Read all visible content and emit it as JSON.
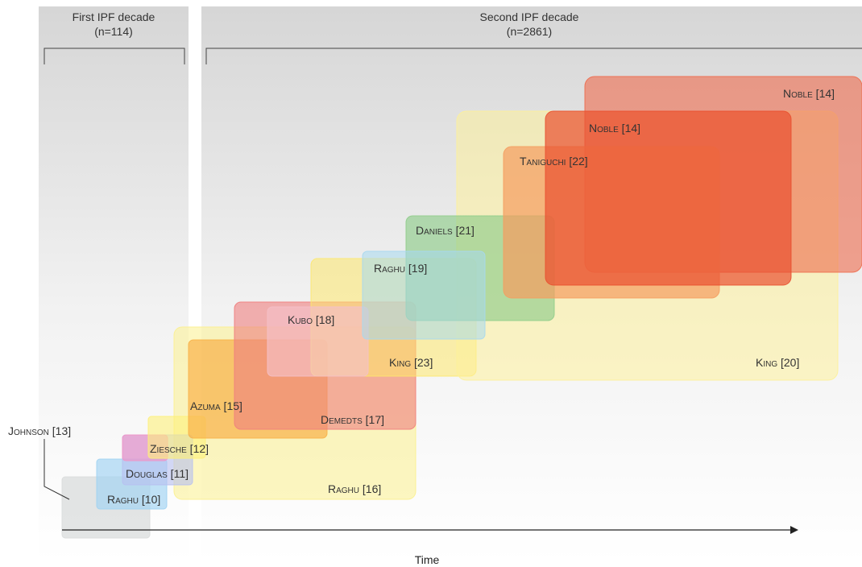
{
  "decades": [
    {
      "line1": "First IPF decade",
      "line2": "(n=114)"
    },
    {
      "line1": "Second IPF decade",
      "line2": "(n=2861)"
    }
  ],
  "axis_label": "Time",
  "studies": [
    {
      "id": "johnson",
      "label": "Johnson [13]",
      "color": "#d9dcdc"
    },
    {
      "id": "raghu10",
      "label": "Raghu [10]",
      "color": "#9fd2f2"
    },
    {
      "id": "douglas",
      "label": "Douglas [11]",
      "color": "#b7bff0"
    },
    {
      "id": "ziesche",
      "label": "Ziesche [12]",
      "color": "#f093c6"
    },
    {
      "id": "ziesche_y",
      "label": "",
      "color": "#fdf07a"
    },
    {
      "id": "raghu16",
      "label": "Raghu [16]",
      "color": "#fbf08e"
    },
    {
      "id": "azuma",
      "label": "Azuma [15]",
      "color": "#f8b148"
    },
    {
      "id": "demedts",
      "label": "Demedts [17]",
      "color": "#ef7e7e"
    },
    {
      "id": "kubo",
      "label": "Kubo [18]",
      "color": "#f4c0c8"
    },
    {
      "id": "king23",
      "label": "King [23]",
      "color": "#fde86b"
    },
    {
      "id": "raghu19",
      "label": "Raghu [19]",
      "color": "#a6d8ef"
    },
    {
      "id": "daniels",
      "label": "Daniels [21]",
      "color": "#8fcc8a"
    },
    {
      "id": "king20",
      "label": "King [20]",
      "color": "#fdf19a"
    },
    {
      "id": "taniguchi",
      "label": "Taniguchi [22]",
      "color": "#f59d60"
    },
    {
      "id": "noble14a",
      "label": "Noble [14]",
      "color": "#e95030"
    },
    {
      "id": "noble14b",
      "label": "Noble [14]",
      "color": "#ee6a4c"
    }
  ]
}
